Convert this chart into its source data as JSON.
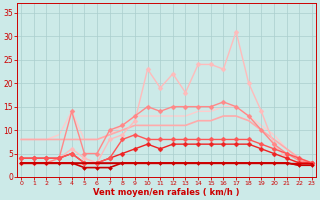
{
  "x": [
    0,
    1,
    2,
    3,
    4,
    5,
    6,
    7,
    8,
    9,
    10,
    11,
    12,
    13,
    14,
    15,
    16,
    17,
    18,
    19,
    20,
    21,
    22,
    23
  ],
  "series": [
    {
      "y": [
        3,
        3,
        3,
        3,
        3,
        3,
        3,
        3,
        3,
        3,
        3,
        3,
        3,
        3,
        3,
        3,
        3,
        3,
        3,
        3,
        3,
        3,
        3,
        3
      ],
      "color": "#dd0000",
      "lw": 1.0,
      "marker": null,
      "zorder": 5
    },
    {
      "y": [
        3,
        3,
        3,
        3,
        3,
        3,
        3,
        3,
        3,
        3,
        3,
        3,
        3,
        3,
        3,
        3,
        3,
        3,
        3,
        3,
        3,
        3,
        2.5,
        2.5
      ],
      "color": "#bb0000",
      "lw": 1.0,
      "marker": null,
      "zorder": 5
    },
    {
      "y": [
        3,
        3,
        3,
        3,
        3,
        2,
        2,
        2,
        3,
        3,
        3,
        3,
        3,
        3,
        3,
        3,
        3,
        3,
        3,
        3,
        3,
        3,
        2.5,
        2.5
      ],
      "color": "#cc0000",
      "lw": 1.2,
      "marker": "D",
      "ms": 2.0,
      "zorder": 5
    },
    {
      "y": [
        4,
        4,
        4,
        4,
        5,
        3,
        3,
        4,
        5,
        6,
        7,
        6,
        7,
        7,
        7,
        7,
        7,
        7,
        7,
        6,
        5,
        4,
        3,
        3
      ],
      "color": "#ee2222",
      "lw": 1.0,
      "marker": "D",
      "ms": 2.5,
      "zorder": 4
    },
    {
      "y": [
        4,
        4,
        4,
        4,
        5,
        3,
        3,
        4,
        8,
        9,
        8,
        8,
        8,
        8,
        8,
        8,
        8,
        8,
        8,
        7,
        6,
        5,
        4,
        3
      ],
      "color": "#ff5555",
      "lw": 1.0,
      "marker": "D",
      "ms": 2.5,
      "zorder": 4
    },
    {
      "y": [
        8,
        8,
        8,
        8,
        8,
        8,
        8,
        9,
        10,
        11,
        11,
        11,
        11,
        11,
        12,
        12,
        13,
        13,
        12,
        10,
        8,
        6,
        4,
        3
      ],
      "color": "#ffaaaa",
      "lw": 1.2,
      "marker": null,
      "zorder": 2
    },
    {
      "y": [
        8,
        8,
        8,
        9,
        14,
        8,
        8,
        9,
        11,
        13,
        13,
        13,
        13,
        13,
        14,
        14,
        15,
        15,
        13,
        11,
        9,
        6,
        4,
        3
      ],
      "color": "#ffcccc",
      "lw": 1.0,
      "marker": null,
      "zorder": 1
    },
    {
      "y": [
        3,
        3,
        3,
        4,
        14,
        5,
        5,
        10,
        11,
        13,
        15,
        14,
        15,
        15,
        15,
        15,
        16,
        15,
        13,
        10,
        7,
        5,
        3.5,
        3
      ],
      "color": "#ff8888",
      "lw": 1.0,
      "marker": "D",
      "ms": 2.5,
      "zorder": 3
    },
    {
      "y": [
        3,
        3,
        3,
        4,
        6,
        4,
        3,
        8,
        9,
        12,
        23,
        19,
        22,
        18,
        24,
        24,
        23,
        31,
        20,
        14,
        7,
        4,
        3,
        3
      ],
      "color": "#ffbbbb",
      "lw": 1.0,
      "marker": "D",
      "ms": 2.5,
      "zorder": 2
    }
  ],
  "xlim": [
    -0.3,
    23.3
  ],
  "ylim": [
    0,
    37
  ],
  "yticks": [
    0,
    5,
    10,
    15,
    20,
    25,
    30,
    35
  ],
  "xticks": [
    0,
    1,
    2,
    3,
    4,
    5,
    6,
    7,
    8,
    9,
    10,
    11,
    12,
    13,
    14,
    15,
    16,
    17,
    18,
    19,
    20,
    21,
    22,
    23
  ],
  "xlabel": "Vent moyen/en rafales ( km/h )",
  "bg_color": "#cceae8",
  "grid_color": "#aacece",
  "tick_color": "#cc0000",
  "label_color": "#cc0000",
  "spine_color": "#cc0000"
}
